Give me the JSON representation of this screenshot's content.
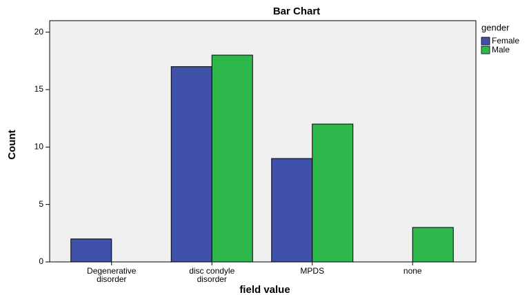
{
  "chart_data": {
    "type": "bar",
    "title": "Bar Chart",
    "x_label": "field value",
    "y_label": "Count",
    "categories": [
      "Degenerative disorder",
      "disc condyle disorder",
      "MPDS",
      "none"
    ],
    "legend_title": "gender",
    "legend_position": "right",
    "series": [
      {
        "name": "Female",
        "color": "#3f51a8",
        "values": [
          2,
          17,
          9,
          null
        ]
      },
      {
        "name": "Male",
        "color": "#2eb84c",
        "values": [
          null,
          18,
          12,
          3
        ]
      }
    ],
    "ylim": [
      0,
      21
    ],
    "yticks": [
      0,
      5,
      10,
      15,
      20
    ],
    "grid": false
  }
}
